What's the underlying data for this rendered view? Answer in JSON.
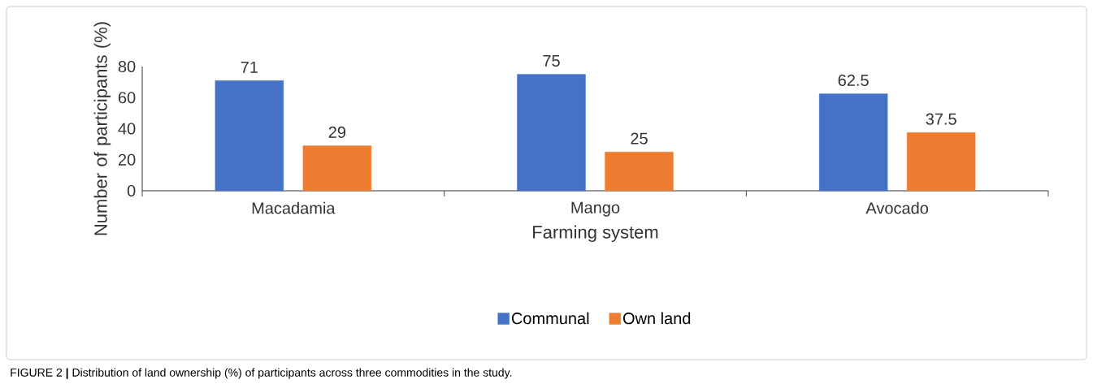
{
  "chart_data": {
    "type": "bar",
    "xlabel": "Farming system",
    "ylabel": "Number of participants (%)",
    "categories": [
      "Macadamia",
      "Mango",
      "Avocado"
    ],
    "series": [
      {
        "name": "Communal",
        "color": "#4472c4",
        "values": [
          71,
          75,
          62.5
        ]
      },
      {
        "name": "Own land",
        "color": "#ed7d31",
        "values": [
          29,
          25,
          37.5
        ]
      }
    ],
    "ylim": [
      0,
      80
    ],
    "yticks": [
      0,
      20,
      40,
      60,
      80
    ],
    "grid": false,
    "legend": "bottom",
    "data_labels": true,
    "annotations": [
      "FIGURE 2 **|** Distribution of land ownership (%) of participants across three commodities in the study."
    ]
  }
}
